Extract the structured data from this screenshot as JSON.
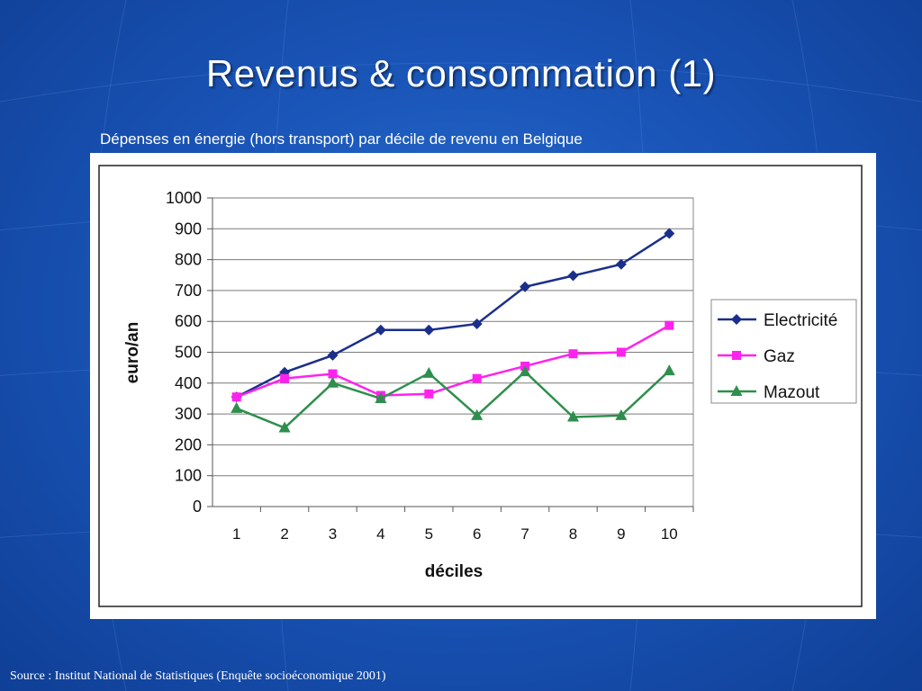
{
  "slide": {
    "title": "Revenus & consommation (1)",
    "subtitle": "Dépenses en énergie (hors transport) par décile de revenu en Belgique",
    "source": "Source : Institut National de Statistiques (Enquête socioéconomique 2001)"
  },
  "colors": {
    "background": "#1a55b8",
    "electricite": "#1a2f8c",
    "gaz": "#ff22ee",
    "mazout": "#2e8f4c"
  },
  "chart_data": {
    "type": "line",
    "title": "",
    "xlabel": "déciles",
    "ylabel": "euro/an",
    "categories": [
      "1",
      "2",
      "3",
      "4",
      "5",
      "6",
      "7",
      "8",
      "9",
      "10"
    ],
    "ylim": [
      0,
      1000
    ],
    "yticks": [
      0,
      100,
      200,
      300,
      400,
      500,
      600,
      700,
      800,
      900,
      1000
    ],
    "grid": true,
    "legend_position": "right",
    "series": [
      {
        "name": "Electricité",
        "marker": "diamond",
        "color": "#1a2f8c",
        "values": [
          355,
          435,
          490,
          572,
          572,
          592,
          712,
          748,
          785,
          885
        ]
      },
      {
        "name": "Gaz",
        "marker": "square",
        "color": "#ff22ee",
        "values": [
          355,
          415,
          430,
          360,
          365,
          415,
          455,
          495,
          500,
          587
        ]
      },
      {
        "name": "Mazout",
        "marker": "triangle",
        "color": "#2e8f4c",
        "values": [
          318,
          255,
          400,
          350,
          432,
          295,
          437,
          290,
          295,
          440
        ]
      }
    ]
  }
}
